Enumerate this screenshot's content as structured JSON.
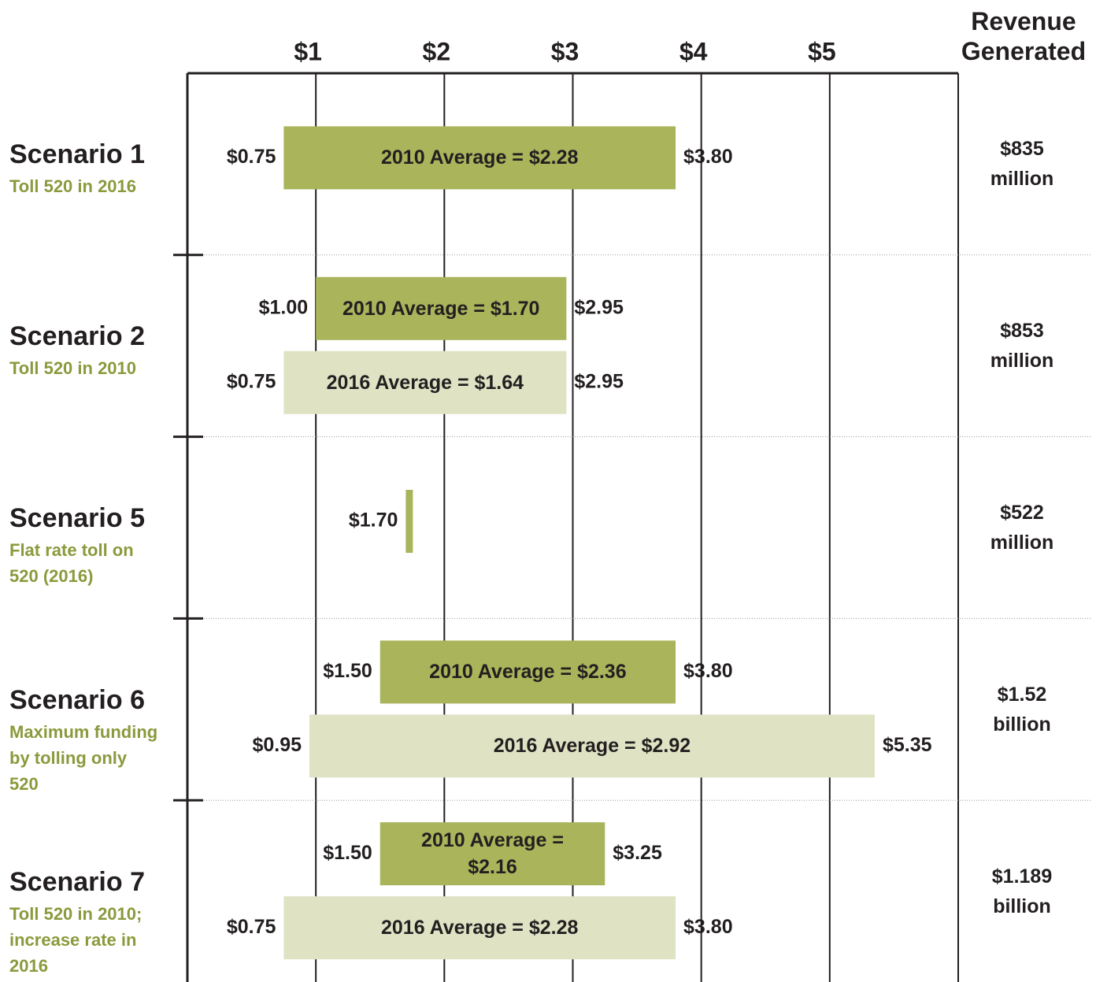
{
  "chart_data": {
    "type": "range-bar",
    "xlim": [
      0,
      6
    ],
    "xticks": [
      {
        "value": 1,
        "label": "$1"
      },
      {
        "value": 2,
        "label": "$2"
      },
      {
        "value": 3,
        "label": "$3"
      },
      {
        "value": 4,
        "label": "$4"
      },
      {
        "value": 5,
        "label": "$5"
      }
    ],
    "revenue_title": "Revenue Generated",
    "grid": true,
    "scenarios": [
      {
        "name": "Scenario 1",
        "subtitle": "Toll 520 in 2016",
        "revenue": "$835 million",
        "bars": [
          {
            "name": "2010 Average = $2.28",
            "values": [
              0.75,
              3.8
            ],
            "value_labels": [
              "$0.75",
              "$3.80"
            ],
            "color": "#a9b45b"
          }
        ]
      },
      {
        "name": "Scenario 2",
        "subtitle": "Toll 520 in 2010",
        "revenue": "$853 million",
        "bars": [
          {
            "name": "2010 Average = $1.70",
            "values": [
              1.0,
              2.95
            ],
            "value_labels": [
              "$1.00",
              "$2.95"
            ],
            "color": "#a9b45b"
          },
          {
            "name": "2016 Average = $1.64",
            "values": [
              0.75,
              2.95
            ],
            "value_labels": [
              "$0.75",
              "$2.95"
            ],
            "color": "#dfe3c4"
          }
        ]
      },
      {
        "name": "Scenario 5",
        "subtitle": "Flat rate toll on 520 (2016)",
        "revenue": "$522 million",
        "bars": [
          {
            "values": [
              1.7
            ],
            "value_labels": [
              "$1.70"
            ],
            "color": "#a9b45b"
          }
        ]
      },
      {
        "name": "Scenario 6",
        "subtitle": "Maximum funding by tolling only 520",
        "revenue": "$1.52 billion",
        "bars": [
          {
            "name": "2010 Average = $2.36",
            "values": [
              1.5,
              3.8
            ],
            "value_labels": [
              "$1.50",
              "$3.80"
            ],
            "color": "#a9b45b"
          },
          {
            "name": "2016 Average = $2.92",
            "values": [
              0.95,
              5.35
            ],
            "value_labels": [
              "$0.95",
              "$5.35"
            ],
            "color": "#dfe3c4"
          }
        ]
      },
      {
        "name": "Scenario 7",
        "subtitle": "Toll 520 in 2010; increase rate in 2016",
        "revenue": "$1.189 billion",
        "bars": [
          {
            "name": "2010 Average = $2.16",
            "values": [
              1.5,
              3.25
            ],
            "value_labels": [
              "$1.50",
              "$3.25"
            ],
            "color": "#a9b45b"
          },
          {
            "name": "2016 Average = $2.28",
            "values": [
              0.75,
              3.8
            ],
            "value_labels": [
              "$0.75",
              "$3.80"
            ],
            "color": "#dfe3c4"
          }
        ]
      }
    ]
  }
}
